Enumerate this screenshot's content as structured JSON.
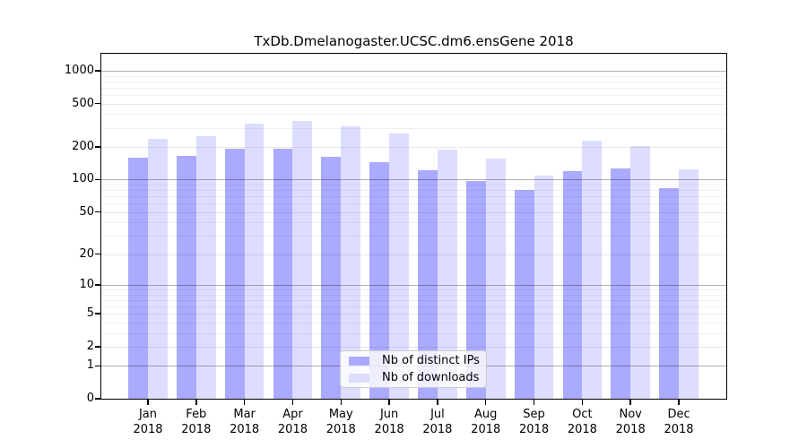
{
  "title": "TxDb.Dmelanogaster.UCSC.dm6.ensGene 2018",
  "colors": {
    "ips_bar": "#aaaaff",
    "downloads_bar": "#ddddff",
    "axis": "#000000",
    "grid_major": "#b3b3b3",
    "grid_minor": "#ececec",
    "legend_border": "#cccccc"
  },
  "legend": {
    "items": [
      {
        "label": "Nb of distinct IPs",
        "series": "ips"
      },
      {
        "label": "Nb of downloads",
        "series": "downloads"
      }
    ]
  },
  "chart_data": {
    "type": "bar",
    "title": "TxDb.Dmelanogaster.UCSC.dm6.ensGene 2018",
    "xlabel": "",
    "ylabel": "",
    "year": "2018",
    "months": [
      "Jan",
      "Feb",
      "Mar",
      "Apr",
      "May",
      "Jun",
      "Jul",
      "Aug",
      "Sep",
      "Oct",
      "Nov",
      "Dec"
    ],
    "series": [
      {
        "name": "Nb of distinct IPs",
        "color": "#aaaaff",
        "values": [
          160,
          165,
          193,
          192,
          161,
          145,
          122,
          97,
          80,
          120,
          127,
          83
        ]
      },
      {
        "name": "Nb of downloads",
        "color": "#ddddff",
        "values": [
          237,
          253,
          326,
          347,
          311,
          266,
          189,
          155,
          108,
          227,
          203,
          125
        ]
      }
    ],
    "y_scale": "log1p",
    "y_ticks": [
      0,
      1,
      2,
      5,
      10,
      20,
      50,
      100,
      200,
      500,
      1000
    ],
    "y_minor_ticks": [
      3,
      4,
      6,
      7,
      8,
      9,
      30,
      40,
      60,
      70,
      80,
      90,
      300,
      400,
      600,
      700,
      800,
      900
    ],
    "ylim": [
      0,
      1450
    ],
    "grid": "on",
    "legend_position": "lower-center"
  }
}
